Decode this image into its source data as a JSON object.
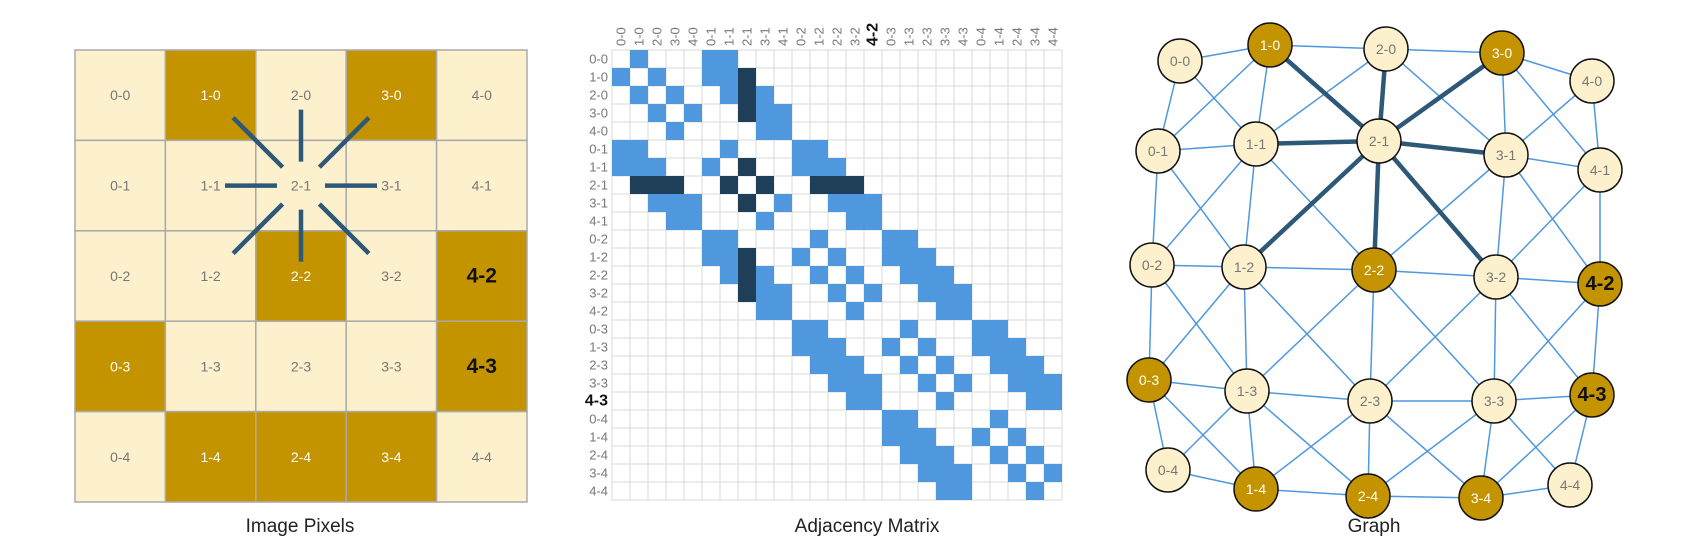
{
  "colors": {
    "light_pixel": "#fdf0cc",
    "dark_pixel": "#c49300",
    "grid_line": "#aaaaaa",
    "matrix_light": "#4f98dd",
    "matrix_dark": "#1f3f59",
    "graph_edge": "#4f98dd",
    "highlight_edge": "#2e5878",
    "label_light": "#777777"
  },
  "captions": {
    "pixels": "Image Pixels",
    "matrix": "Adjacency Matrix",
    "graph": "Graph"
  },
  "grid": {
    "size": 5,
    "center_pixel": "2-1",
    "dark_pixels": [
      "1-0",
      "3-0",
      "2-2",
      "4-2",
      "0-3",
      "4-3",
      "1-4",
      "2-4",
      "3-4"
    ],
    "bold_labels": [
      "4-2",
      "4-3"
    ]
  },
  "matrix": {
    "order": [
      "0-0",
      "1-0",
      "2-0",
      "3-0",
      "4-0",
      "0-1",
      "1-1",
      "2-1",
      "3-1",
      "4-1",
      "0-2",
      "1-2",
      "2-2",
      "3-2",
      "4-2",
      "0-3",
      "1-3",
      "2-3",
      "3-3",
      "4-3",
      "0-4",
      "1-4",
      "2-4",
      "3-4",
      "4-4"
    ],
    "bold_column": "4-2",
    "bold_row": "4-3",
    "highlight_node": "2-1"
  },
  "graph": {
    "nodes": [
      "0-0",
      "1-0",
      "2-0",
      "3-0",
      "4-0",
      "0-1",
      "1-1",
      "2-1",
      "3-1",
      "4-1",
      "0-2",
      "1-2",
      "2-2",
      "3-2",
      "4-2",
      "0-3",
      "1-3",
      "2-3",
      "3-3",
      "4-3",
      "0-4",
      "1-4",
      "2-4",
      "3-4",
      "4-4"
    ]
  }
}
